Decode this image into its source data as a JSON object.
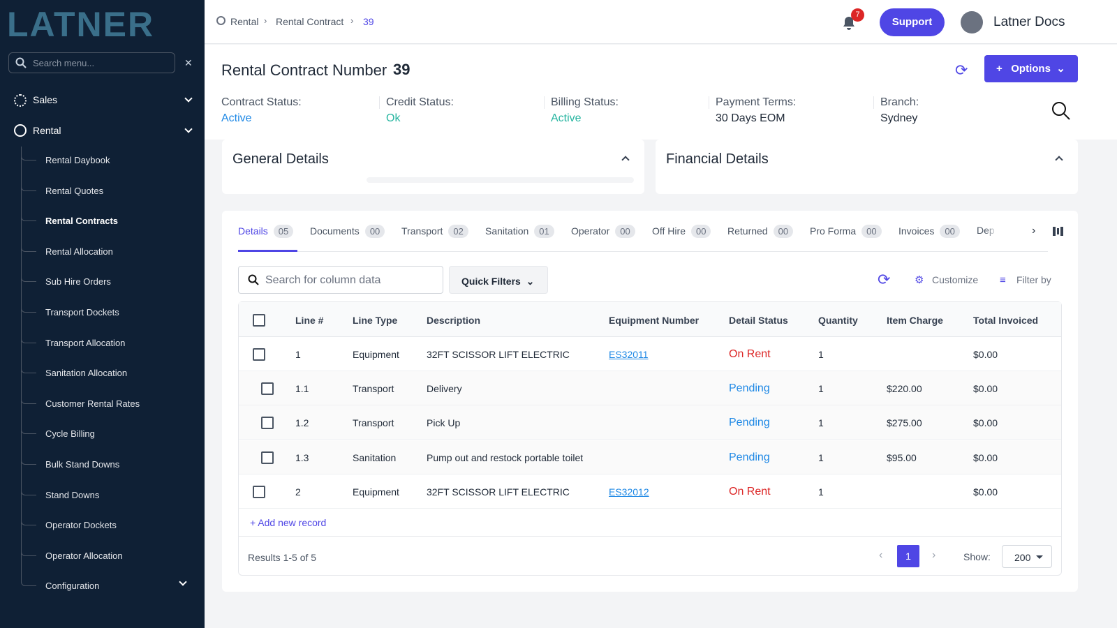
{
  "sidebar": {
    "logo": "LATNER",
    "search_placeholder": "Search menu...",
    "menu": [
      "Sales",
      "Rental"
    ],
    "submenu": [
      "Rental Daybook",
      "Rental Quotes",
      "Rental Contracts",
      "Rental Allocation",
      "Sub Hire Orders",
      "Transport Dockets",
      "Transport Allocation",
      "Sanitation Allocation",
      "Customer Rental Rates",
      "Cycle Billing",
      "Bulk Stand Downs",
      "Stand Downs",
      "Operator Dockets",
      "Operator Allocation",
      "Configuration"
    ]
  },
  "topbar": {
    "breadcrumb": [
      "Rental",
      "Rental Contract",
      "39"
    ],
    "notifications": 7,
    "support": "Support",
    "user": "Latner Docs"
  },
  "header": {
    "title": "Rental Contract Number",
    "number": "39",
    "options": "Options",
    "fields": [
      {
        "label": "Contract Status:",
        "value": "Active",
        "color": "#1e88e5"
      },
      {
        "label": "Credit Status:",
        "value": "Ok",
        "color": "#26b5a0"
      },
      {
        "label": "Billing Status:",
        "value": "Active",
        "color": "#26b5a0"
      },
      {
        "label": "Payment Terms:",
        "value": "30 Days EOM",
        "color": "#1f2937"
      },
      {
        "label": "Branch:",
        "value": "Sydney",
        "color": "#1f2937"
      }
    ]
  },
  "panels": [
    "General Details",
    "Financial Details"
  ],
  "tabs": [
    {
      "name": "Details",
      "count": "05"
    },
    {
      "name": "Documents",
      "count": "00"
    },
    {
      "name": "Transport",
      "count": "02"
    },
    {
      "name": "Sanitation",
      "count": "01"
    },
    {
      "name": "Operator",
      "count": "00"
    },
    {
      "name": "Off Hire",
      "count": "00"
    },
    {
      "name": "Returned",
      "count": "00"
    },
    {
      "name": "Pro Forma",
      "count": "00"
    },
    {
      "name": "Invoices",
      "count": "00"
    },
    {
      "name": "Dep"
    }
  ],
  "toolbar": {
    "search_placeholder": "Search for column data",
    "quick_filters": "Quick Filters",
    "customize": "Customize",
    "filter_by": "Filter by"
  },
  "table": {
    "columns": [
      "Line #",
      "Line Type",
      "Description",
      "Equipment Number",
      "Detail Status",
      "Quantity",
      "Item Charge",
      "Total Invoiced"
    ],
    "rows": [
      {
        "line": "1",
        "type": "Equipment",
        "description": "32FT SCISSOR LIFT ELECTRIC",
        "equipment": "ES32011",
        "status": "On Rent",
        "status_color": "#dc2626",
        "quantity": 1,
        "invoiced": "$0.00"
      },
      {
        "line": "1.1",
        "type": "Transport",
        "description": "Delivery",
        "status": "Pending",
        "status_color": "#1e88e5",
        "quantity": 1,
        "charge": "$220.00",
        "invoiced": "$0.00"
      },
      {
        "line": "1.2",
        "type": "Transport",
        "description": "Pick Up",
        "status": "Pending",
        "status_color": "#1e88e5",
        "quantity": 1,
        "charge": "$275.00",
        "invoiced": "$0.00"
      },
      {
        "line": "1.3",
        "type": "Sanitation",
        "description": "Pump out and restock portable toilet",
        "status": "Pending",
        "status_color": "#1e88e5",
        "quantity": 1,
        "charge": "$95.00",
        "invoiced": "$0.00"
      },
      {
        "line": "2",
        "type": "Equipment",
        "description": "32FT SCISSOR LIFT ELECTRIC",
        "equipment": "ES32012",
        "status": "On Rent",
        "status_color": "#dc2626",
        "quantity": 1,
        "invoiced": "$0.00"
      }
    ],
    "add_record": "+ Add new record",
    "results": "Results 1-5 of 5",
    "page": 1,
    "show_label": "Show:",
    "show_value": 200
  }
}
